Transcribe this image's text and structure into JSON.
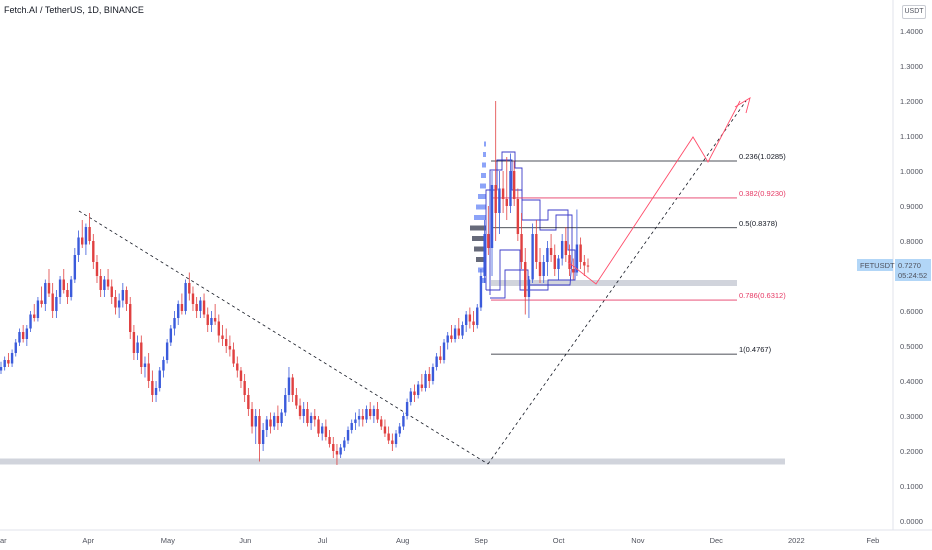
{
  "header": {
    "title": "Fetch.AI / TetherUS, 1D, BINANCE",
    "currency": "USDT"
  },
  "colors": {
    "up": "#3b5bdb",
    "down": "#e04040",
    "fib_black": "#131722",
    "fib_red": "#e63964",
    "zone": "#d1d4dc",
    "profile": "#5b7cf5",
    "projection": "#ff4d6a",
    "price_tag": "#b2d6f7"
  },
  "chart_data": {
    "type": "candlestick",
    "symbol": "FETUSDT",
    "last_price": "0.7270",
    "countdown": "05:24:52",
    "ylim": [
      0,
      1.45
    ],
    "y_ticks": [
      "1.4000",
      "1.3000",
      "1.2000",
      "1.1000",
      "1.0000",
      "0.9000",
      "0.8000",
      "0.7000",
      "0.6000",
      "0.5000",
      "0.4000",
      "0.3000",
      "0.2000",
      "0.1000",
      "0.0000"
    ],
    "x_ticks": [
      "ar",
      "Apr",
      "May",
      "Jun",
      "Jul",
      "Aug",
      "Sep",
      "Oct",
      "Nov",
      "Dec",
      "2022",
      "Feb"
    ],
    "fib_levels": [
      {
        "ratio": "0.236",
        "price": "1.0285",
        "color": "black"
      },
      {
        "ratio": "0.382",
        "price": "0.9230",
        "color": "red"
      },
      {
        "ratio": "0.5",
        "price": "0.8378",
        "color": "black"
      },
      {
        "ratio": "0.786",
        "price": "0.6312",
        "color": "red"
      },
      {
        "ratio": "1",
        "price": "0.4767",
        "color": "black"
      }
    ],
    "support_zones": [
      0.17,
      0.68
    ],
    "candles": [
      [
        0.43,
        0.455,
        0.42,
        0.44
      ],
      [
        0.44,
        0.47,
        0.43,
        0.46
      ],
      [
        0.46,
        0.48,
        0.44,
        0.45
      ],
      [
        0.45,
        0.49,
        0.44,
        0.48
      ],
      [
        0.48,
        0.52,
        0.47,
        0.51
      ],
      [
        0.51,
        0.55,
        0.5,
        0.54
      ],
      [
        0.54,
        0.56,
        0.51,
        0.52
      ],
      [
        0.52,
        0.56,
        0.5,
        0.55
      ],
      [
        0.55,
        0.6,
        0.54,
        0.59
      ],
      [
        0.59,
        0.62,
        0.57,
        0.58
      ],
      [
        0.58,
        0.64,
        0.57,
        0.63
      ],
      [
        0.63,
        0.67,
        0.61,
        0.62
      ],
      [
        0.62,
        0.69,
        0.6,
        0.68
      ],
      [
        0.68,
        0.72,
        0.64,
        0.65
      ],
      [
        0.65,
        0.68,
        0.58,
        0.6
      ],
      [
        0.6,
        0.66,
        0.58,
        0.64
      ],
      [
        0.64,
        0.7,
        0.62,
        0.69
      ],
      [
        0.69,
        0.72,
        0.65,
        0.66
      ],
      [
        0.66,
        0.68,
        0.62,
        0.64
      ],
      [
        0.64,
        0.7,
        0.63,
        0.69
      ],
      [
        0.69,
        0.78,
        0.68,
        0.76
      ],
      [
        0.76,
        0.83,
        0.74,
        0.81
      ],
      [
        0.81,
        0.86,
        0.78,
        0.79
      ],
      [
        0.79,
        0.85,
        0.76,
        0.84
      ],
      [
        0.84,
        0.88,
        0.79,
        0.8
      ],
      [
        0.8,
        0.82,
        0.72,
        0.74
      ],
      [
        0.74,
        0.76,
        0.68,
        0.7
      ],
      [
        0.7,
        0.72,
        0.64,
        0.66
      ],
      [
        0.66,
        0.7,
        0.64,
        0.69
      ],
      [
        0.69,
        0.72,
        0.66,
        0.67
      ],
      [
        0.67,
        0.69,
        0.62,
        0.64
      ],
      [
        0.64,
        0.66,
        0.59,
        0.61
      ],
      [
        0.61,
        0.65,
        0.58,
        0.63
      ],
      [
        0.63,
        0.68,
        0.61,
        0.66
      ],
      [
        0.66,
        0.67,
        0.6,
        0.62
      ],
      [
        0.62,
        0.64,
        0.52,
        0.54
      ],
      [
        0.54,
        0.56,
        0.46,
        0.48
      ],
      [
        0.48,
        0.53,
        0.46,
        0.51
      ],
      [
        0.51,
        0.53,
        0.42,
        0.44
      ],
      [
        0.44,
        0.47,
        0.41,
        0.45
      ],
      [
        0.45,
        0.48,
        0.38,
        0.4
      ],
      [
        0.4,
        0.43,
        0.34,
        0.36
      ],
      [
        0.36,
        0.4,
        0.34,
        0.38
      ],
      [
        0.38,
        0.44,
        0.37,
        0.43
      ],
      [
        0.43,
        0.47,
        0.41,
        0.46
      ],
      [
        0.46,
        0.52,
        0.45,
        0.51
      ],
      [
        0.51,
        0.56,
        0.5,
        0.55
      ],
      [
        0.55,
        0.6,
        0.53,
        0.58
      ],
      [
        0.58,
        0.63,
        0.56,
        0.62
      ],
      [
        0.62,
        0.65,
        0.59,
        0.6
      ],
      [
        0.6,
        0.69,
        0.59,
        0.68
      ],
      [
        0.68,
        0.71,
        0.63,
        0.65
      ],
      [
        0.65,
        0.67,
        0.6,
        0.62
      ],
      [
        0.62,
        0.64,
        0.58,
        0.6
      ],
      [
        0.6,
        0.64,
        0.58,
        0.63
      ],
      [
        0.63,
        0.65,
        0.58,
        0.59
      ],
      [
        0.59,
        0.61,
        0.54,
        0.56
      ],
      [
        0.56,
        0.6,
        0.54,
        0.58
      ],
      [
        0.58,
        0.62,
        0.56,
        0.57
      ],
      [
        0.57,
        0.59,
        0.51,
        0.53
      ],
      [
        0.53,
        0.56,
        0.5,
        0.52
      ],
      [
        0.52,
        0.55,
        0.48,
        0.5
      ],
      [
        0.5,
        0.53,
        0.47,
        0.49
      ],
      [
        0.49,
        0.51,
        0.44,
        0.45
      ],
      [
        0.45,
        0.47,
        0.41,
        0.43
      ],
      [
        0.43,
        0.44,
        0.38,
        0.4
      ],
      [
        0.4,
        0.42,
        0.34,
        0.36
      ],
      [
        0.36,
        0.38,
        0.3,
        0.32
      ],
      [
        0.32,
        0.34,
        0.25,
        0.27
      ],
      [
        0.27,
        0.32,
        0.22,
        0.3
      ],
      [
        0.3,
        0.32,
        0.17,
        0.22
      ],
      [
        0.22,
        0.28,
        0.2,
        0.26
      ],
      [
        0.26,
        0.3,
        0.24,
        0.29
      ],
      [
        0.29,
        0.31,
        0.25,
        0.27
      ],
      [
        0.27,
        0.31,
        0.26,
        0.3
      ],
      [
        0.3,
        0.33,
        0.26,
        0.28
      ],
      [
        0.28,
        0.32,
        0.27,
        0.31
      ],
      [
        0.31,
        0.38,
        0.3,
        0.36
      ],
      [
        0.36,
        0.44,
        0.34,
        0.41
      ],
      [
        0.41,
        0.42,
        0.34,
        0.36
      ],
      [
        0.36,
        0.38,
        0.32,
        0.33
      ],
      [
        0.33,
        0.35,
        0.29,
        0.3
      ],
      [
        0.3,
        0.34,
        0.28,
        0.32
      ],
      [
        0.32,
        0.34,
        0.27,
        0.28
      ],
      [
        0.28,
        0.31,
        0.26,
        0.3
      ],
      [
        0.3,
        0.32,
        0.27,
        0.29
      ],
      [
        0.29,
        0.3,
        0.24,
        0.25
      ],
      [
        0.25,
        0.28,
        0.23,
        0.27
      ],
      [
        0.27,
        0.29,
        0.23,
        0.24
      ],
      [
        0.24,
        0.26,
        0.21,
        0.22
      ],
      [
        0.22,
        0.24,
        0.18,
        0.2
      ],
      [
        0.2,
        0.22,
        0.16,
        0.19
      ],
      [
        0.19,
        0.22,
        0.18,
        0.21
      ],
      [
        0.21,
        0.24,
        0.2,
        0.23
      ],
      [
        0.23,
        0.27,
        0.22,
        0.26
      ],
      [
        0.26,
        0.29,
        0.25,
        0.28
      ],
      [
        0.28,
        0.31,
        0.26,
        0.29
      ],
      [
        0.29,
        0.32,
        0.27,
        0.3
      ],
      [
        0.3,
        0.32,
        0.27,
        0.29
      ],
      [
        0.29,
        0.33,
        0.28,
        0.32
      ],
      [
        0.32,
        0.34,
        0.29,
        0.3
      ],
      [
        0.3,
        0.33,
        0.28,
        0.32
      ],
      [
        0.32,
        0.34,
        0.28,
        0.29
      ],
      [
        0.29,
        0.3,
        0.26,
        0.27
      ],
      [
        0.27,
        0.29,
        0.24,
        0.25
      ],
      [
        0.25,
        0.27,
        0.22,
        0.23
      ],
      [
        0.23,
        0.25,
        0.2,
        0.22
      ],
      [
        0.22,
        0.26,
        0.21,
        0.25
      ],
      [
        0.25,
        0.28,
        0.24,
        0.27
      ],
      [
        0.27,
        0.31,
        0.26,
        0.3
      ],
      [
        0.3,
        0.35,
        0.29,
        0.34
      ],
      [
        0.34,
        0.38,
        0.33,
        0.37
      ],
      [
        0.37,
        0.39,
        0.34,
        0.36
      ],
      [
        0.36,
        0.4,
        0.35,
        0.39
      ],
      [
        0.39,
        0.42,
        0.37,
        0.38
      ],
      [
        0.38,
        0.43,
        0.37,
        0.42
      ],
      [
        0.42,
        0.44,
        0.38,
        0.4
      ],
      [
        0.4,
        0.45,
        0.39,
        0.44
      ],
      [
        0.44,
        0.48,
        0.43,
        0.47
      ],
      [
        0.47,
        0.5,
        0.45,
        0.46
      ],
      [
        0.46,
        0.52,
        0.45,
        0.51
      ],
      [
        0.51,
        0.54,
        0.49,
        0.53
      ],
      [
        0.53,
        0.56,
        0.51,
        0.52
      ],
      [
        0.52,
        0.56,
        0.51,
        0.55
      ],
      [
        0.55,
        0.58,
        0.52,
        0.53
      ],
      [
        0.53,
        0.57,
        0.52,
        0.56
      ],
      [
        0.56,
        0.6,
        0.54,
        0.59
      ],
      [
        0.59,
        0.61,
        0.55,
        0.57
      ],
      [
        0.57,
        0.6,
        0.54,
        0.56
      ],
      [
        0.56,
        0.62,
        0.55,
        0.61
      ],
      [
        0.61,
        0.72,
        0.6,
        0.7
      ],
      [
        0.7,
        0.86,
        0.68,
        0.82
      ],
      [
        0.82,
        0.9,
        0.76,
        0.78
      ],
      [
        0.78,
        1.0,
        0.7,
        0.96
      ],
      [
        0.96,
        1.2,
        0.8,
        0.88
      ],
      [
        0.88,
        1.0,
        0.82,
        0.95
      ],
      [
        0.95,
        1.0,
        0.88,
        0.92
      ],
      [
        0.92,
        1.04,
        0.86,
        0.9
      ],
      [
        0.9,
        1.05,
        0.88,
        1.0
      ],
      [
        1.0,
        1.03,
        0.9,
        0.92
      ],
      [
        0.92,
        0.95,
        0.8,
        0.82
      ],
      [
        0.82,
        0.88,
        0.72,
        0.74
      ],
      [
        0.74,
        0.78,
        0.59,
        0.64
      ],
      [
        0.64,
        0.7,
        0.58,
        0.69
      ],
      [
        0.69,
        0.85,
        0.68,
        0.82
      ],
      [
        0.82,
        0.86,
        0.72,
        0.74
      ],
      [
        0.74,
        0.78,
        0.68,
        0.7
      ],
      [
        0.7,
        0.76,
        0.68,
        0.74
      ],
      [
        0.74,
        0.8,
        0.7,
        0.78
      ],
      [
        0.78,
        0.82,
        0.74,
        0.76
      ],
      [
        0.76,
        0.79,
        0.7,
        0.72
      ],
      [
        0.72,
        0.76,
        0.69,
        0.75
      ],
      [
        0.75,
        0.82,
        0.73,
        0.8
      ],
      [
        0.8,
        0.84,
        0.74,
        0.76
      ],
      [
        0.76,
        0.79,
        0.7,
        0.72
      ],
      [
        0.72,
        0.75,
        0.69,
        0.71
      ],
      [
        0.71,
        0.89,
        0.7,
        0.79
      ],
      [
        0.79,
        0.81,
        0.72,
        0.74
      ],
      [
        0.74,
        0.76,
        0.7,
        0.73
      ],
      [
        0.73,
        0.75,
        0.71,
        0.727
      ]
    ]
  }
}
